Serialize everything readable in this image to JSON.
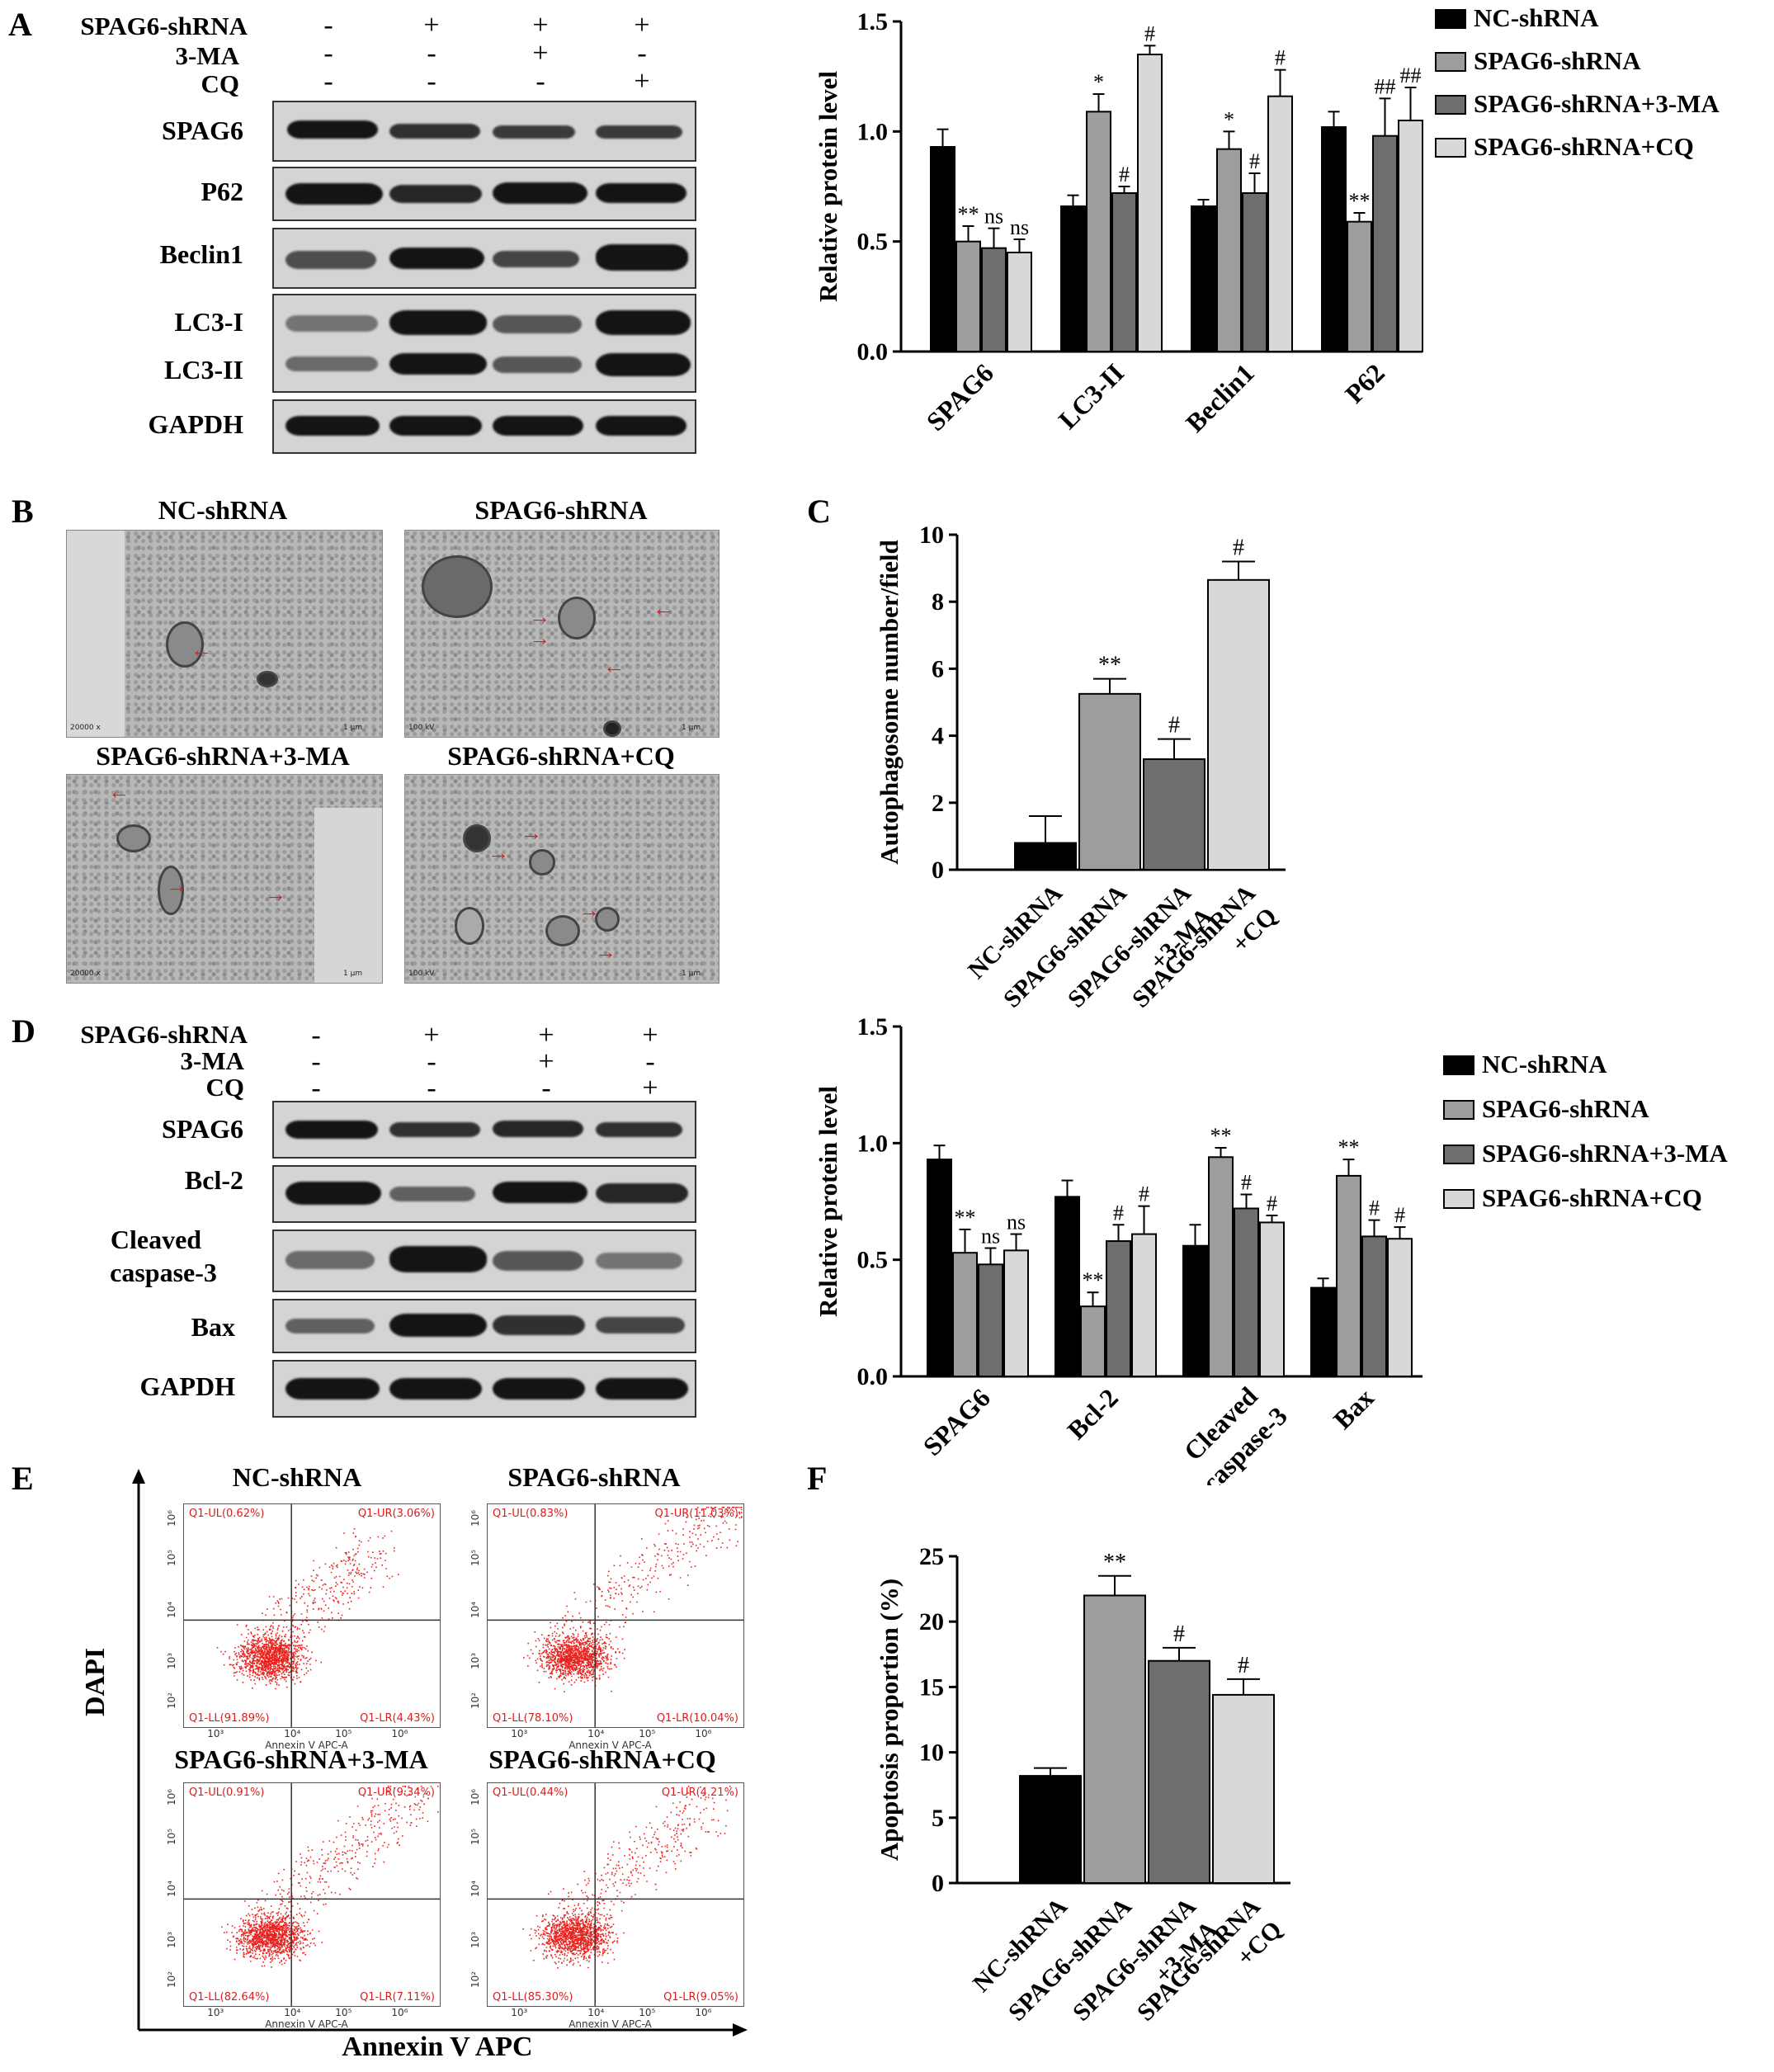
{
  "panel_letters": [
    "A",
    "B",
    "C",
    "D",
    "E",
    "F"
  ],
  "panelA": {
    "conditions": [
      "SPAG6-shRNA",
      "3-MA",
      "CQ"
    ],
    "signs": [
      [
        "-",
        "+",
        "+",
        "+"
      ],
      [
        "-",
        "-",
        "+",
        "-"
      ],
      [
        "-",
        "-",
        "-",
        "+"
      ]
    ],
    "blot_labels": [
      "SPAG6",
      "P62",
      "Beclin1",
      "LC3-I",
      "LC3-II",
      "GAPDH"
    ]
  },
  "panelB": {
    "titles": [
      "NC-shRNA",
      "SPAG6-shRNA",
      "SPAG6-shRNA+3-MA",
      "SPAG6-shRNA+CQ"
    ],
    "scale_text": [
      "20000 x",
      "100 kV",
      "1 μm"
    ]
  },
  "panelD": {
    "conditions": [
      "SPAG6-shRNA",
      "3-MA",
      "CQ"
    ],
    "signs": [
      [
        "-",
        "+",
        "+",
        "+"
      ],
      [
        "-",
        "-",
        "+",
        "-"
      ],
      [
        "-",
        "-",
        "-",
        "+"
      ]
    ],
    "blot_labels": [
      "SPAG6",
      "Bcl-2",
      "Cleaved",
      "caspase-3",
      "Bax",
      "GAPDH"
    ]
  },
  "panelE": {
    "titles": [
      "NC-shRNA",
      "SPAG6-shRNA",
      "SPAG6-shRNA+3-MA",
      "SPAG6-shRNA+CQ"
    ],
    "y_label": "DAPI",
    "x_label": "Annexin V APC",
    "axis_small": "Annexin V APC-A",
    "quadrants": [
      [
        "Q1-UL(0.62%)",
        "Q1-UR(3.06%)",
        "Q1-LL(91.89%)",
        "Q1-LR(4.43%)"
      ],
      [
        "Q1-UL(0.83%)",
        "Q1-UR(11.03%)",
        "Q1-LL(78.10%)",
        "Q1-LR(10.04%)"
      ],
      [
        "Q1-UL(0.91%)",
        "Q1-UR(9.34%)",
        "Q1-LL(82.64%)",
        "Q1-LR(7.11%)"
      ],
      [
        "Q1-UL(0.44%)",
        "Q1-UR(4.21%)",
        "Q1-LL(85.30%)",
        "Q1-LR(9.05%)"
      ]
    ],
    "ticks": [
      "10³",
      "10⁴",
      "10⁵",
      "10⁶",
      "10²"
    ]
  },
  "colors": {
    "nc": "#000000",
    "spag6": "#9d9d9d",
    "ma": "#6e6e6e",
    "cq": "#d8d8d8",
    "scatter": "#e8231f"
  },
  "chart_data": [
    {
      "id": "A",
      "type": "bar",
      "ylabel": "Relative protein level",
      "ylim": [
        0,
        1.5
      ],
      "yticks": [
        "0.0",
        "0.5",
        "1.0",
        "1.5"
      ],
      "categories": [
        "SPAG6",
        "LC3-II",
        "Beclin1",
        "P62"
      ],
      "legend": "right",
      "series": [
        {
          "name": "NC-shRNA",
          "values": [
            0.93,
            0.66,
            0.66,
            1.02
          ],
          "errors": [
            0.08,
            0.05,
            0.03,
            0.07
          ],
          "marks": [
            "",
            "",
            "",
            ""
          ]
        },
        {
          "name": "SPAG6-shRNA",
          "values": [
            0.5,
            1.09,
            0.92,
            0.59
          ],
          "errors": [
            0.07,
            0.08,
            0.08,
            0.04
          ],
          "marks": [
            "**",
            "*",
            "*",
            "**"
          ]
        },
        {
          "name": "SPAG6-shRNA+3-MA",
          "values": [
            0.47,
            0.72,
            0.72,
            0.98
          ],
          "errors": [
            0.09,
            0.03,
            0.09,
            0.17
          ],
          "marks": [
            "ns",
            "#",
            "#",
            "##"
          ]
        },
        {
          "name": "SPAG6-shRNA+CQ",
          "values": [
            0.45,
            1.35,
            1.16,
            1.05
          ],
          "errors": [
            0.06,
            0.04,
            0.12,
            0.15
          ],
          "marks": [
            "ns",
            "#",
            "#",
            "##"
          ]
        }
      ]
    },
    {
      "id": "C",
      "type": "bar",
      "ylabel": "Autophagosome number/field",
      "ylim": [
        0,
        10
      ],
      "yticks": [
        "0",
        "2",
        "4",
        "6",
        "8",
        "10"
      ],
      "categories": [
        "NC-shRNA",
        "SPAG6-shRNA",
        "SPAG6-shRNA +3-MA",
        "SPAG6-shRNA +CQ"
      ],
      "values": [
        0.8,
        5.25,
        3.3,
        8.65
      ],
      "errors": [
        0.8,
        0.45,
        0.6,
        0.55
      ],
      "marks": [
        "",
        "**",
        "#",
        "#"
      ]
    },
    {
      "id": "D",
      "type": "bar",
      "ylabel": "Relative protein level",
      "ylim": [
        0,
        1.5
      ],
      "yticks": [
        "0.0",
        "0.5",
        "1.0",
        "1.5"
      ],
      "categories": [
        "SPAG6",
        "Bcl-2",
        "Cleaved caspase-3",
        "Bax"
      ],
      "legend": "right",
      "series": [
        {
          "name": "NC-shRNA",
          "values": [
            0.93,
            0.77,
            0.56,
            0.38
          ],
          "errors": [
            0.06,
            0.07,
            0.09,
            0.04
          ],
          "marks": [
            "",
            "",
            "",
            ""
          ]
        },
        {
          "name": "SPAG6-shRNA",
          "values": [
            0.53,
            0.3,
            0.94,
            0.86
          ],
          "errors": [
            0.1,
            0.06,
            0.04,
            0.07
          ],
          "marks": [
            "**",
            "**",
            "**",
            "**"
          ]
        },
        {
          "name": "SPAG6-shRNA+3-MA",
          "values": [
            0.48,
            0.58,
            0.72,
            0.6
          ],
          "errors": [
            0.07,
            0.07,
            0.06,
            0.07
          ],
          "marks": [
            "ns",
            "#",
            "#",
            "#"
          ]
        },
        {
          "name": "SPAG6-shRNA+CQ",
          "values": [
            0.54,
            0.61,
            0.66,
            0.59
          ],
          "errors": [
            0.07,
            0.12,
            0.03,
            0.05
          ],
          "marks": [
            "ns",
            "#",
            "#",
            "#"
          ]
        }
      ]
    },
    {
      "id": "F",
      "type": "bar",
      "ylabel": "Apoptosis proportion (%)",
      "ylim": [
        0,
        25
      ],
      "yticks": [
        "0",
        "5",
        "10",
        "15",
        "20",
        "25"
      ],
      "categories": [
        "NC-shRNA",
        "SPAG6-shRNA",
        "SPAG6-shRNA +3-MA",
        "SPAG6-shRNA +CQ"
      ],
      "values": [
        8.2,
        22.0,
        17.0,
        14.4
      ],
      "errors": [
        0.6,
        1.5,
        1.0,
        1.2
      ],
      "marks": [
        "",
        "**",
        "#",
        "#"
      ]
    }
  ]
}
